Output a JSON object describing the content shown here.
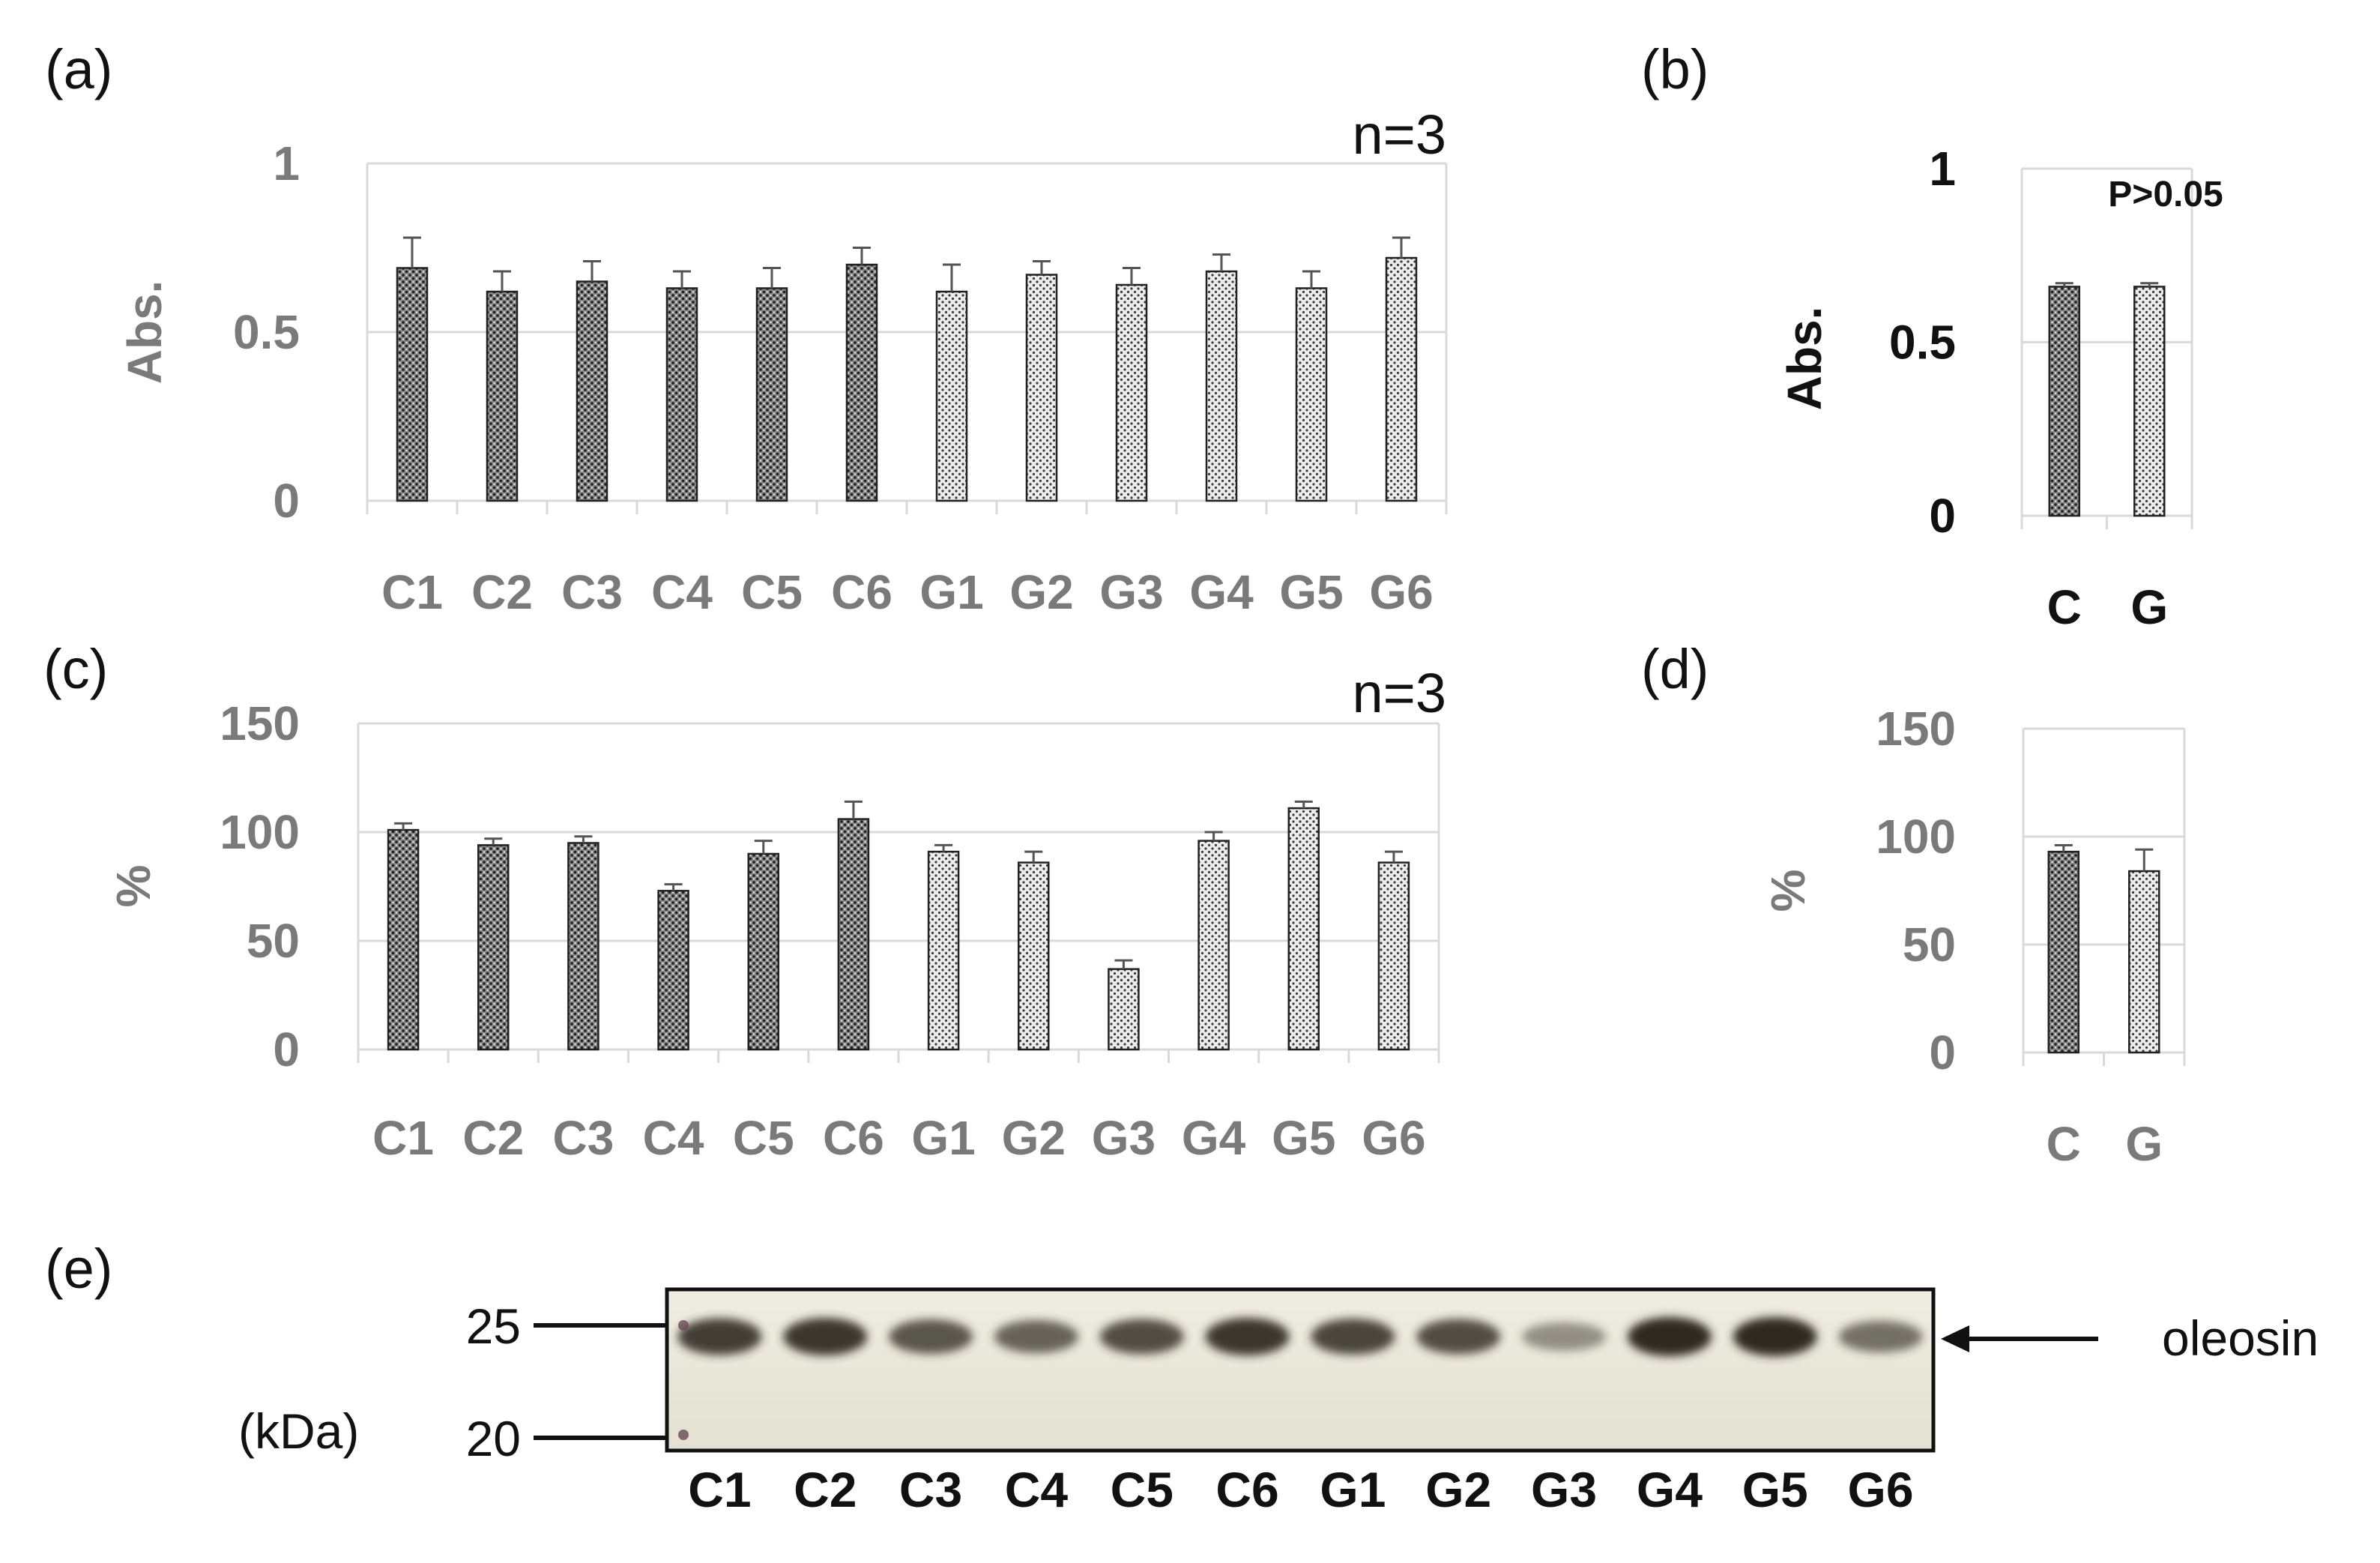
{
  "chart_data": [
    {
      "panel": "(a)",
      "type": "bar",
      "annotation": "n=3",
      "ylabel": "Abs.",
      "ylim": [
        0,
        1
      ],
      "yticks": [
        "0",
        "0.5",
        "1"
      ],
      "grid": true,
      "categories": [
        "C1",
        "C2",
        "C3",
        "C4",
        "C5",
        "C6",
        "G1",
        "G2",
        "G3",
        "G4",
        "G5",
        "G6"
      ],
      "values": [
        0.69,
        0.62,
        0.65,
        0.63,
        0.63,
        0.7,
        0.62,
        0.67,
        0.64,
        0.68,
        0.63,
        0.72
      ],
      "errors": [
        0.09,
        0.06,
        0.06,
        0.05,
        0.06,
        0.05,
        0.08,
        0.04,
        0.05,
        0.05,
        0.05,
        0.06
      ],
      "patterns": [
        "dense",
        "dense",
        "dense",
        "dense",
        "dense",
        "dense",
        "light",
        "light",
        "light",
        "light",
        "light",
        "light"
      ]
    },
    {
      "panel": "(b)",
      "type": "bar",
      "annotation": "P>0.05",
      "ylabel": "Abs.",
      "ylim": [
        0,
        1
      ],
      "yticks": [
        "0",
        "0.5",
        "1"
      ],
      "grid": true,
      "categories": [
        "C",
        "G"
      ],
      "values": [
        0.66,
        0.66
      ],
      "errors": [
        0.01,
        0.01
      ],
      "patterns": [
        "dense",
        "light"
      ]
    },
    {
      "panel": "(c)",
      "type": "bar",
      "annotation": "n=3",
      "ylabel": "%",
      "ylim": [
        0,
        150
      ],
      "yticks": [
        "0",
        "50",
        "100",
        "150"
      ],
      "grid": true,
      "categories": [
        "C1",
        "C2",
        "C3",
        "C4",
        "C5",
        "C6",
        "G1",
        "G2",
        "G3",
        "G4",
        "G5",
        "G6"
      ],
      "values": [
        101,
        94,
        95,
        73,
        90,
        106,
        91,
        86,
        37,
        96,
        111,
        86
      ],
      "errors": [
        3,
        3,
        3,
        3,
        6,
        8,
        3,
        5,
        4,
        4,
        3,
        5
      ],
      "patterns": [
        "dense",
        "dense",
        "dense",
        "dense",
        "dense",
        "dense",
        "light",
        "light",
        "light",
        "light",
        "light",
        "light"
      ]
    },
    {
      "panel": "(d)",
      "type": "bar",
      "annotation": "",
      "ylabel": "%",
      "ylim": [
        0,
        150
      ],
      "yticks": [
        "0",
        "50",
        "100",
        "150"
      ],
      "grid": true,
      "categories": [
        "C",
        "G"
      ],
      "values": [
        93,
        84
      ],
      "errors": [
        3,
        10
      ],
      "patterns": [
        "dense",
        "light"
      ]
    }
  ],
  "blot": {
    "panel": "(e)",
    "unit": "(kDa)",
    "markers": [
      "25",
      "20"
    ],
    "band_label": "oleosin",
    "lanes": [
      "C1",
      "C2",
      "C3",
      "C4",
      "C5",
      "C6",
      "G1",
      "G2",
      "G3",
      "G4",
      "G5",
      "G6"
    ],
    "intensity": [
      0.85,
      0.9,
      0.7,
      0.6,
      0.75,
      0.9,
      0.8,
      0.75,
      0.3,
      1.0,
      1.0,
      0.5
    ],
    "colors": {
      "membrane": "#e8e6d9",
      "band": "#2e2b22",
      "frame": "#111111"
    }
  },
  "colors": {
    "tick_gray": "#7a7a7a",
    "grid": "#d9d9d9",
    "bar_outline": "#222222",
    "error_bar": "#555555"
  }
}
